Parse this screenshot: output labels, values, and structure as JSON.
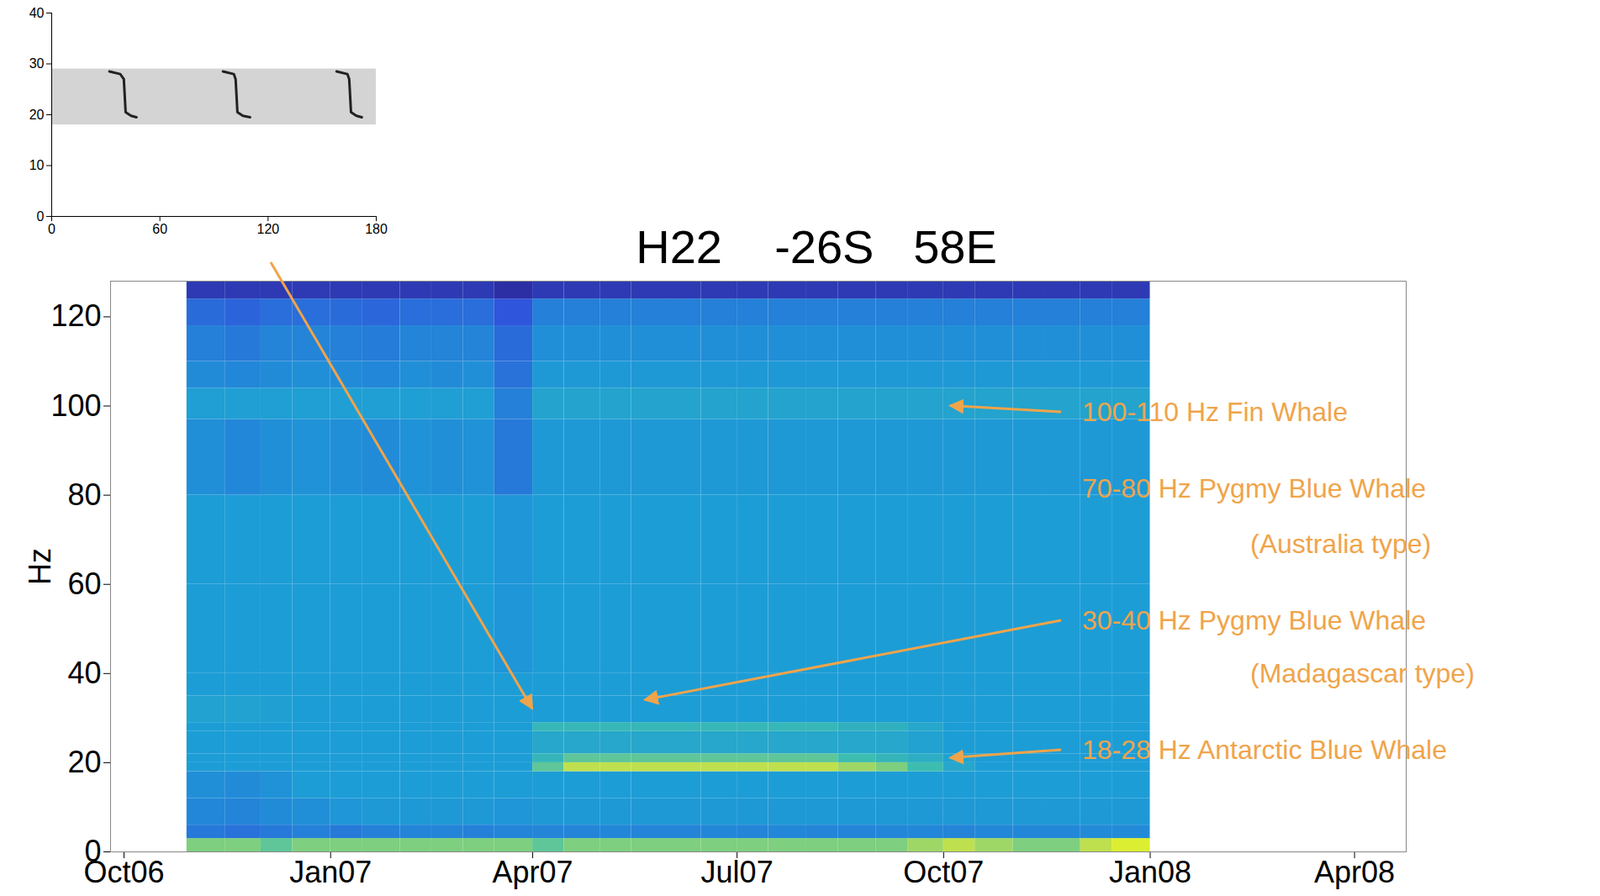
{
  "chart_data": [
    {
      "type": "heatmap",
      "title": "H22    -26S   58E",
      "y_label": "Hz",
      "x_edges": [
        "2006-10-29",
        "2006-11-15",
        "2006-12-01",
        "2006-12-15",
        "2007-01-01",
        "2007-01-15",
        "2007-02-01",
        "2007-02-15",
        "2007-03-01",
        "2007-03-15",
        "2007-04-01",
        "2007-04-15",
        "2007-05-01",
        "2007-05-15",
        "2007-06-01",
        "2007-06-15",
        "2007-07-01",
        "2007-07-15",
        "2007-08-01",
        "2007-08-15",
        "2007-09-01",
        "2007-09-15",
        "2007-10-01",
        "2007-10-15",
        "2007-11-01",
        "2007-11-15",
        "2007-12-01",
        "2007-12-15",
        "2008-01-01"
      ],
      "y_edges": [
        0,
        3,
        6,
        12,
        18,
        20,
        22,
        27,
        29,
        35,
        40,
        60,
        80,
        97,
        104,
        110,
        118,
        124,
        128
      ],
      "z": [
        [
          7,
          7,
          6.5,
          7,
          7,
          7,
          7,
          7,
          7,
          7,
          6.5,
          7,
          7,
          7,
          7,
          7,
          7,
          7,
          7,
          7,
          7,
          7.5,
          8,
          7.5,
          7,
          7,
          8,
          9
        ],
        [
          3,
          2.8,
          3,
          3.2,
          3,
          3.2,
          3.3,
          3.3,
          3.2,
          3.3,
          3.3,
          3.3,
          3.4,
          3.3,
          3.3,
          3.4,
          3.3,
          3.4,
          3.3,
          3.3,
          3.4,
          3.4,
          3.3,
          3.4,
          3.4,
          3.4,
          3.5,
          3.5
        ],
        [
          3.4,
          3.3,
          3.5,
          3.6,
          3.8,
          3.9,
          3.9,
          3.9,
          3.9,
          3.8,
          3.9,
          3.9,
          3.9,
          3.9,
          3.9,
          3.9,
          3.9,
          3.9,
          3.9,
          3.9,
          3.9,
          3.9,
          3.9,
          3.9,
          3.9,
          3.9,
          3.9,
          3.9
        ],
        [
          3.6,
          3.5,
          3.7,
          4,
          4,
          4,
          4,
          4,
          4,
          4,
          4,
          4,
          4,
          4,
          4,
          4,
          4,
          4,
          4,
          4,
          4,
          4,
          4,
          4,
          4,
          4,
          4,
          4
        ],
        [
          4,
          4,
          4,
          4,
          4,
          4,
          4,
          4,
          4,
          4,
          6.5,
          8,
          8,
          8,
          8,
          8,
          8,
          8,
          8,
          7.5,
          7,
          6,
          4.6,
          4,
          4,
          4,
          4,
          4
        ],
        [
          4,
          4,
          4,
          4,
          4,
          4,
          4,
          4,
          4,
          4,
          5.5,
          6.5,
          6.5,
          6.5,
          6.5,
          6.5,
          6.5,
          6.5,
          6.5,
          6,
          5.5,
          5,
          4.3,
          4,
          4,
          4,
          4,
          4
        ],
        [
          4,
          4,
          4,
          4,
          4,
          4,
          4,
          4,
          4,
          4,
          4.6,
          4.6,
          4.6,
          4.6,
          4.6,
          4.6,
          4.6,
          4.6,
          4.6,
          4.6,
          4.6,
          4.3,
          4,
          4,
          4,
          4,
          4,
          4
        ],
        [
          4,
          4,
          4,
          4,
          4,
          4,
          4,
          4,
          4,
          4,
          5.6,
          5.6,
          5.6,
          5.6,
          5.6,
          5.6,
          5.6,
          5.6,
          5.6,
          5.2,
          5.2,
          4.6,
          4,
          4,
          4,
          4,
          4,
          4
        ],
        [
          4.3,
          4.3,
          4.2,
          4,
          4,
          4,
          4,
          4,
          4,
          4,
          4,
          4,
          4,
          4,
          4,
          4,
          4,
          4,
          4,
          4,
          4,
          4,
          4,
          4,
          4,
          4,
          4,
          4
        ],
        [
          4,
          4,
          4,
          4,
          4,
          4,
          4,
          4,
          4,
          4,
          4,
          4,
          4,
          4,
          4,
          4,
          4,
          4,
          4,
          4,
          4,
          4,
          4,
          4,
          4,
          4,
          4,
          4
        ],
        [
          4,
          4,
          4,
          4,
          4,
          4,
          4,
          4,
          4,
          3.8,
          4,
          4,
          4,
          4,
          4,
          4,
          4,
          4,
          4,
          4,
          4,
          4,
          4,
          4,
          4,
          4,
          4,
          4
        ],
        [
          4,
          4,
          4,
          4,
          4,
          4,
          4,
          4,
          4,
          3.8,
          4,
          4,
          4,
          4,
          4,
          4,
          4,
          4,
          4,
          4,
          4,
          4,
          4,
          4,
          4,
          4,
          4,
          4
        ],
        [
          3.6,
          3.4,
          3.6,
          3.7,
          3.6,
          3.5,
          3.7,
          3.6,
          3.7,
          3,
          3.9,
          3.9,
          3.9,
          3.9,
          3.9,
          3.9,
          3.9,
          3.9,
          3.9,
          3.9,
          3.9,
          3.9,
          3.9,
          3.9,
          3.9,
          3.9,
          3.9,
          3.9
        ],
        [
          4.1,
          4.1,
          4.1,
          4.1,
          4.1,
          4.1,
          4.1,
          4.1,
          4.1,
          3.2,
          4.4,
          4.4,
          4.4,
          4.4,
          4.4,
          4.4,
          4.4,
          4.4,
          4.4,
          4.4,
          4.4,
          4.4,
          4.4,
          4.4,
          4.4,
          4.4,
          4.4,
          4.4
        ],
        [
          3.5,
          3.4,
          3.5,
          3.6,
          3.5,
          3.4,
          3.6,
          3.5,
          3.6,
          2.8,
          3.9,
          3.9,
          3.9,
          3.9,
          3.9,
          3.9,
          3.9,
          3.9,
          3.9,
          3.9,
          3.9,
          3.9,
          3.9,
          3.9,
          3.9,
          3.9,
          3.9,
          3.9
        ],
        [
          3.2,
          3,
          3.3,
          3.3,
          3.2,
          3.1,
          3.3,
          3.3,
          3.3,
          2.6,
          3.6,
          3.6,
          3.6,
          3.6,
          3.6,
          3.6,
          3.6,
          3.6,
          3.6,
          3.6,
          3.6,
          3.6,
          3.6,
          3.6,
          3.6,
          3.6,
          3.6,
          3.6
        ],
        [
          2.6,
          2.4,
          2.7,
          2.7,
          2.6,
          2.5,
          2.7,
          2.7,
          2.7,
          2,
          3.2,
          3.2,
          3.2,
          3.2,
          3.2,
          3.2,
          3.2,
          3.2,
          3.2,
          3.2,
          3.2,
          3.2,
          3.2,
          3.2,
          3.2,
          3.2,
          3.2,
          3.2
        ],
        [
          1,
          1,
          1,
          1,
          1,
          1,
          1,
          1,
          1,
          0.6,
          1,
          1,
          1,
          1,
          1,
          1,
          1,
          1,
          1,
          1,
          1,
          1,
          1,
          1,
          1,
          1,
          1,
          1
        ]
      ],
      "color_range": [
        0,
        10
      ],
      "xlim": [
        "2006-09-25",
        "2008-04-24"
      ],
      "xticks": [
        {
          "value": "2006-10-01",
          "label": "Oct06"
        },
        {
          "value": "2007-01-01",
          "label": "Jan07"
        },
        {
          "value": "2007-04-01",
          "label": "Apr07"
        },
        {
          "value": "2007-07-01",
          "label": "Jul07"
        },
        {
          "value": "2007-10-01",
          "label": "Oct07"
        },
        {
          "value": "2008-01-01",
          "label": "Jan08"
        },
        {
          "value": "2008-04-01",
          "label": "Apr08"
        }
      ],
      "ylim": [
        0,
        128
      ],
      "yticks": [
        0,
        20,
        40,
        60,
        80,
        100,
        120
      ],
      "annotations": [
        {
          "text": [
            "100-110 Hz Fin Whale"
          ],
          "x": "2007-10-04",
          "y": 100
        },
        {
          "text": [
            "70-80 Hz Pygmy Blue Whale",
            "(Australia type)"
          ]
        },
        {
          "text": [
            "30-40 Hz Pygmy Blue Whale",
            "(Madagascar type)"
          ],
          "x": "2007-05-21",
          "y": 34
        },
        {
          "text": [
            "18-28 Hz Antarctic Blue Whale"
          ],
          "x": "2007-10-04",
          "y": 21
        }
      ]
    },
    {
      "type": "line",
      "x": [
        32,
        38,
        40,
        41,
        44,
        47,
        70,
        95,
        101,
        102,
        103,
        106,
        110,
        135,
        158,
        164,
        165,
        166,
        169,
        172
      ],
      "values": [
        28.5,
        28,
        27,
        20.5,
        19.8,
        19.5,
        null,
        28.5,
        28,
        27,
        20.5,
        19.8,
        19.5,
        null,
        28.5,
        28,
        27,
        20.5,
        19.8,
        19.5
      ],
      "color": "#222222",
      "band": [
        18,
        29
      ],
      "xlim": [
        0,
        180
      ],
      "xticks": [
        0,
        60,
        120,
        180
      ],
      "ylim": [
        0,
        40
      ],
      "yticks": [
        0,
        10,
        20,
        30,
        40
      ],
      "arrow_to": {
        "x": "2007-04-01",
        "y": 32
      }
    }
  ]
}
